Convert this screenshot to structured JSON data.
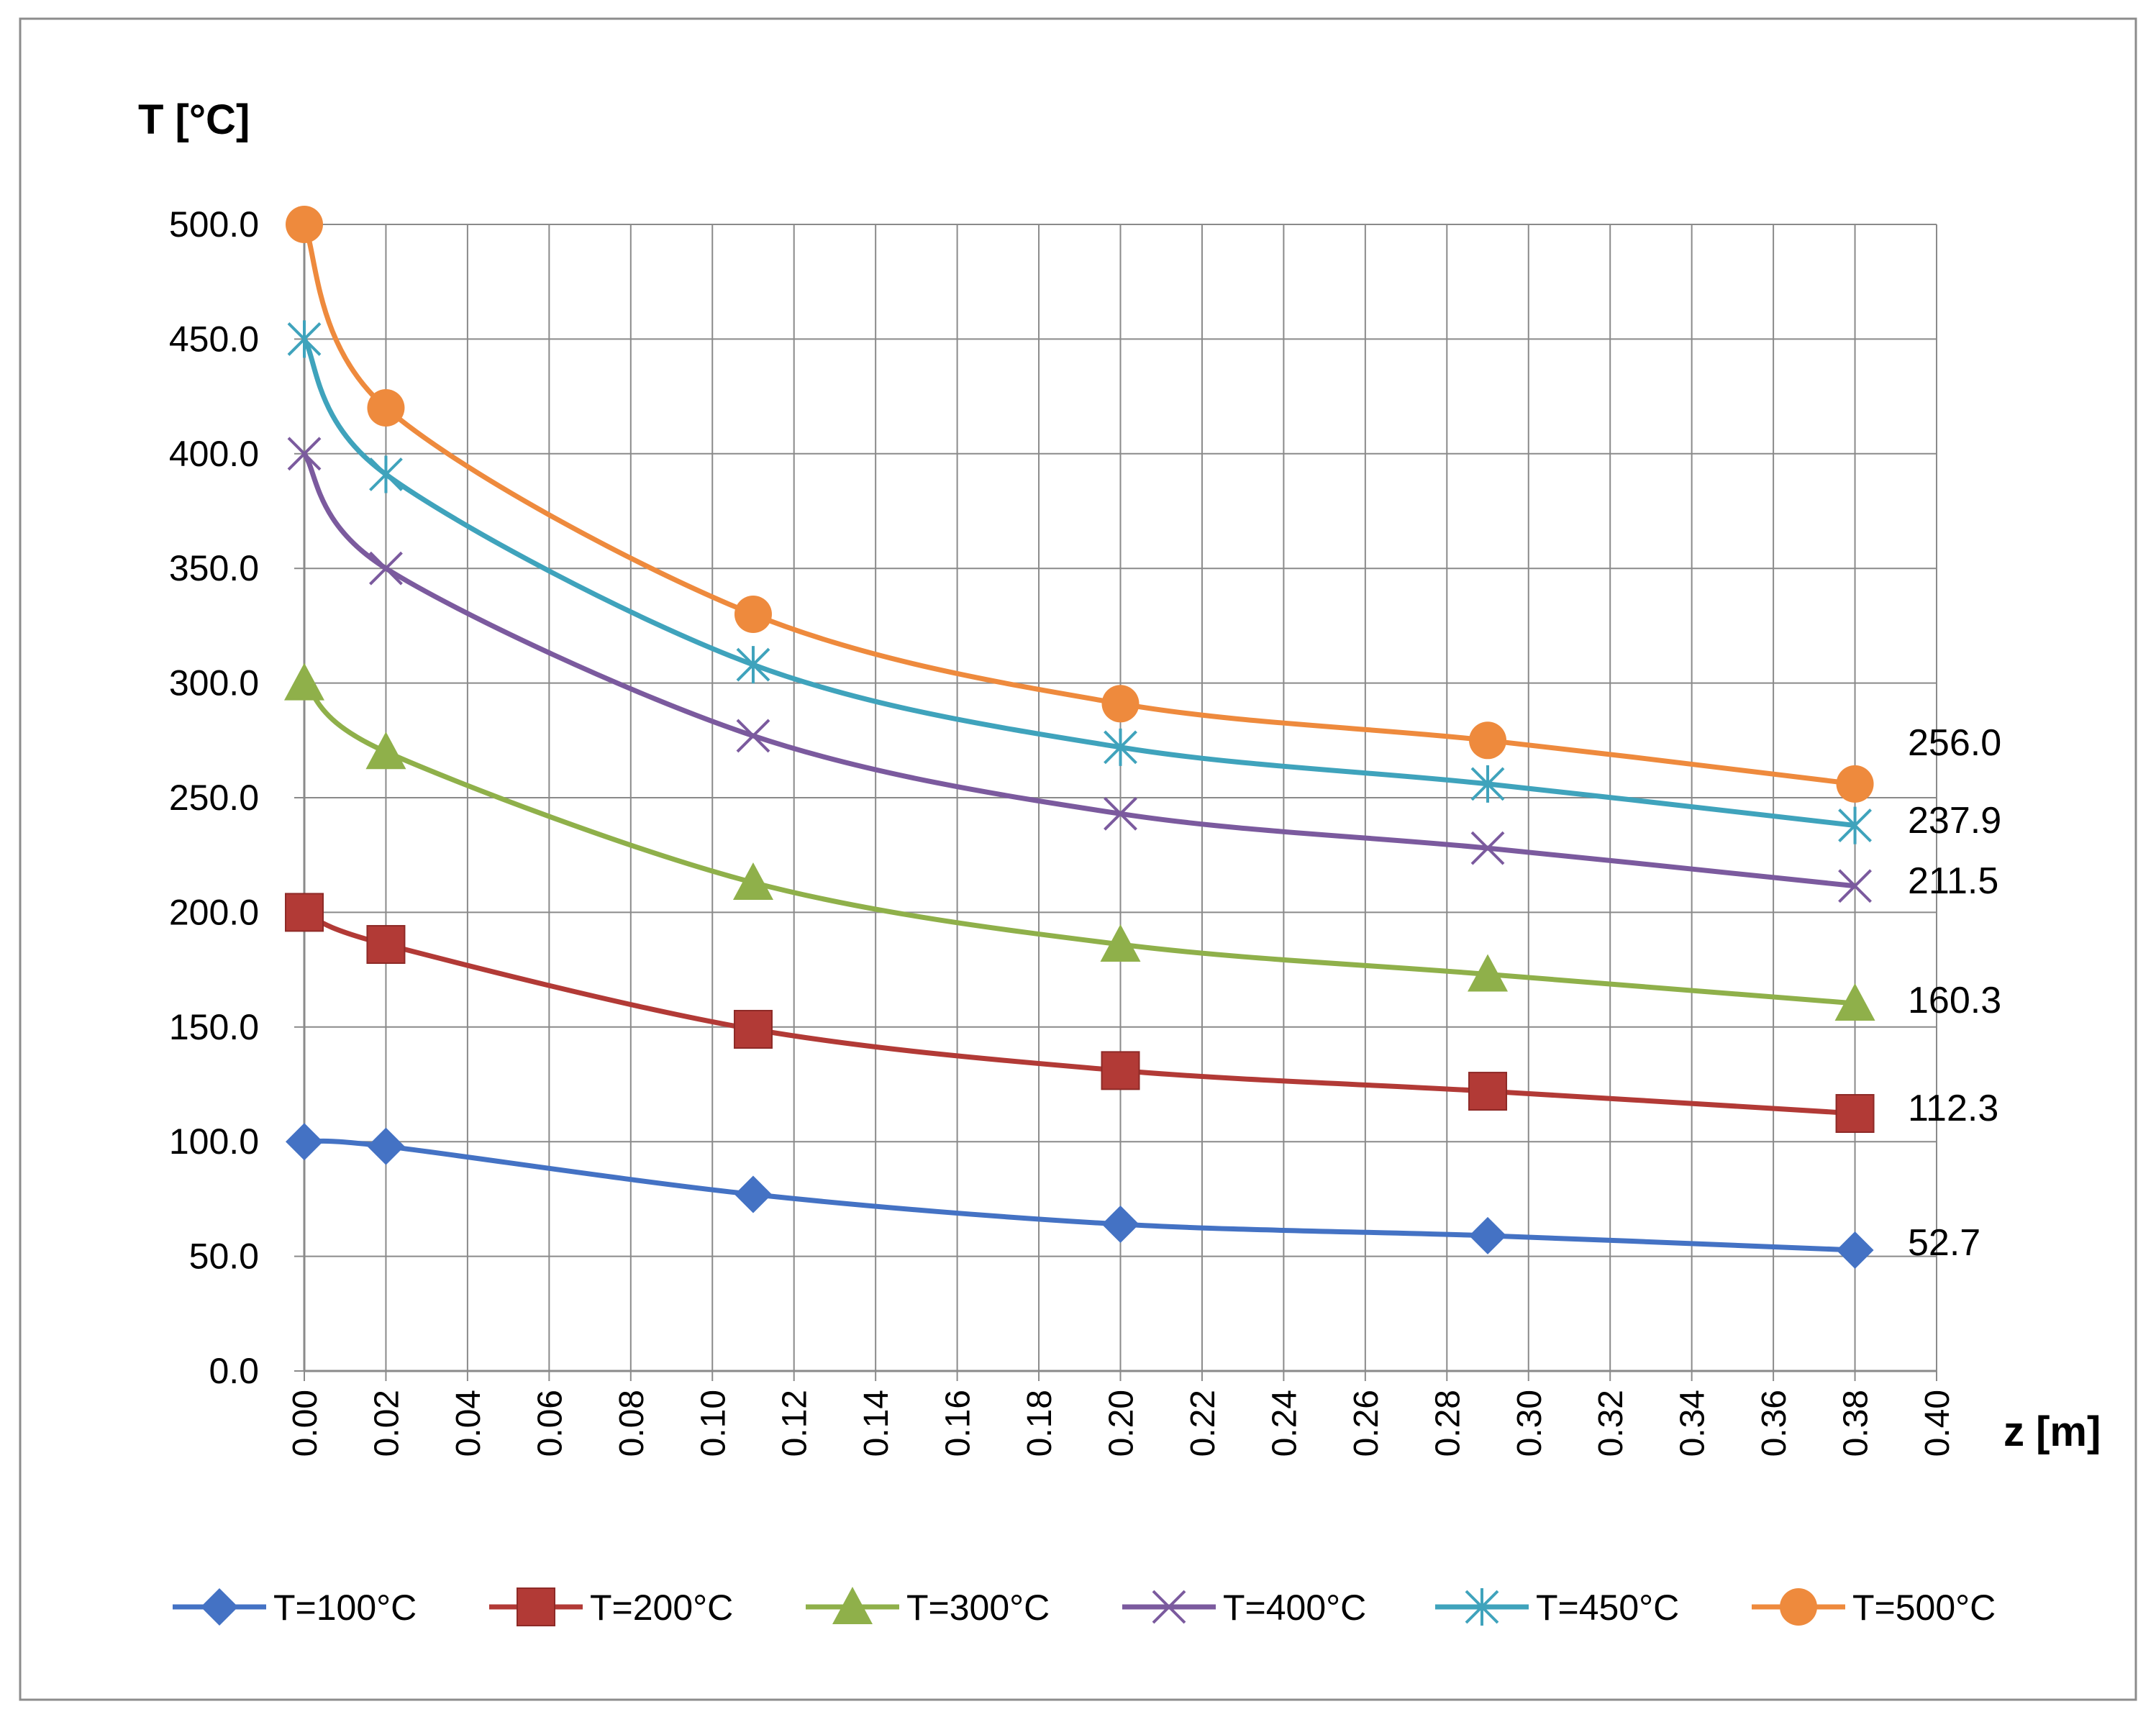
{
  "chart_data": {
    "type": "line",
    "title": "",
    "ylabel": "T [°C]",
    "xlabel": "z [m]",
    "xlim": [
      0,
      0.4
    ],
    "ylim": [
      0,
      500
    ],
    "xticks": [
      "0.00",
      "0.02",
      "0.04",
      "0.06",
      "0.08",
      "0.10",
      "0.12",
      "0.14",
      "0.16",
      "0.18",
      "0.20",
      "0.22",
      "0.24",
      "0.26",
      "0.28",
      "0.30",
      "0.32",
      "0.34",
      "0.36",
      "0.38",
      "0.40"
    ],
    "yticks": [
      "0.0",
      "50.0",
      "100.0",
      "150.0",
      "200.0",
      "250.0",
      "300.0",
      "350.0",
      "400.0",
      "450.0",
      "500.0"
    ],
    "grid": true,
    "legend_position": "bottom",
    "x": [
      0.0,
      0.02,
      0.11,
      0.2,
      0.29,
      0.38
    ],
    "series": [
      {
        "name": "T=100°C",
        "color": "#4472C4",
        "marker": "diamond",
        "values": [
          100.0,
          98.0,
          77.0,
          64.0,
          59.0,
          52.7
        ],
        "end_label": "52.7"
      },
      {
        "name": "T=200°C",
        "color": "#B23A36",
        "marker": "square",
        "values": [
          200.0,
          186.0,
          149.0,
          131.0,
          122.0,
          112.3
        ],
        "end_label": "112.3"
      },
      {
        "name": "T=300°C",
        "color": "#8FB04A",
        "marker": "triangle",
        "values": [
          300.0,
          270.0,
          213.0,
          186.0,
          173.0,
          160.3
        ],
        "end_label": "160.3"
      },
      {
        "name": "T=400°C",
        "color": "#7B5A9E",
        "marker": "x",
        "values": [
          400.0,
          350.0,
          277.0,
          243.0,
          228.0,
          211.5
        ],
        "end_label": "211.5"
      },
      {
        "name": "T=450°C",
        "color": "#3FA3BC",
        "marker": "star",
        "values": [
          450.0,
          391.0,
          308.0,
          272.0,
          256.0,
          237.9
        ],
        "end_label": "237.9"
      },
      {
        "name": "T=500°C",
        "color": "#EE8A3D",
        "marker": "circle",
        "values": [
          500.0,
          420.0,
          330.0,
          291.0,
          275.0,
          256.0
        ],
        "end_label": "256.0"
      }
    ]
  }
}
